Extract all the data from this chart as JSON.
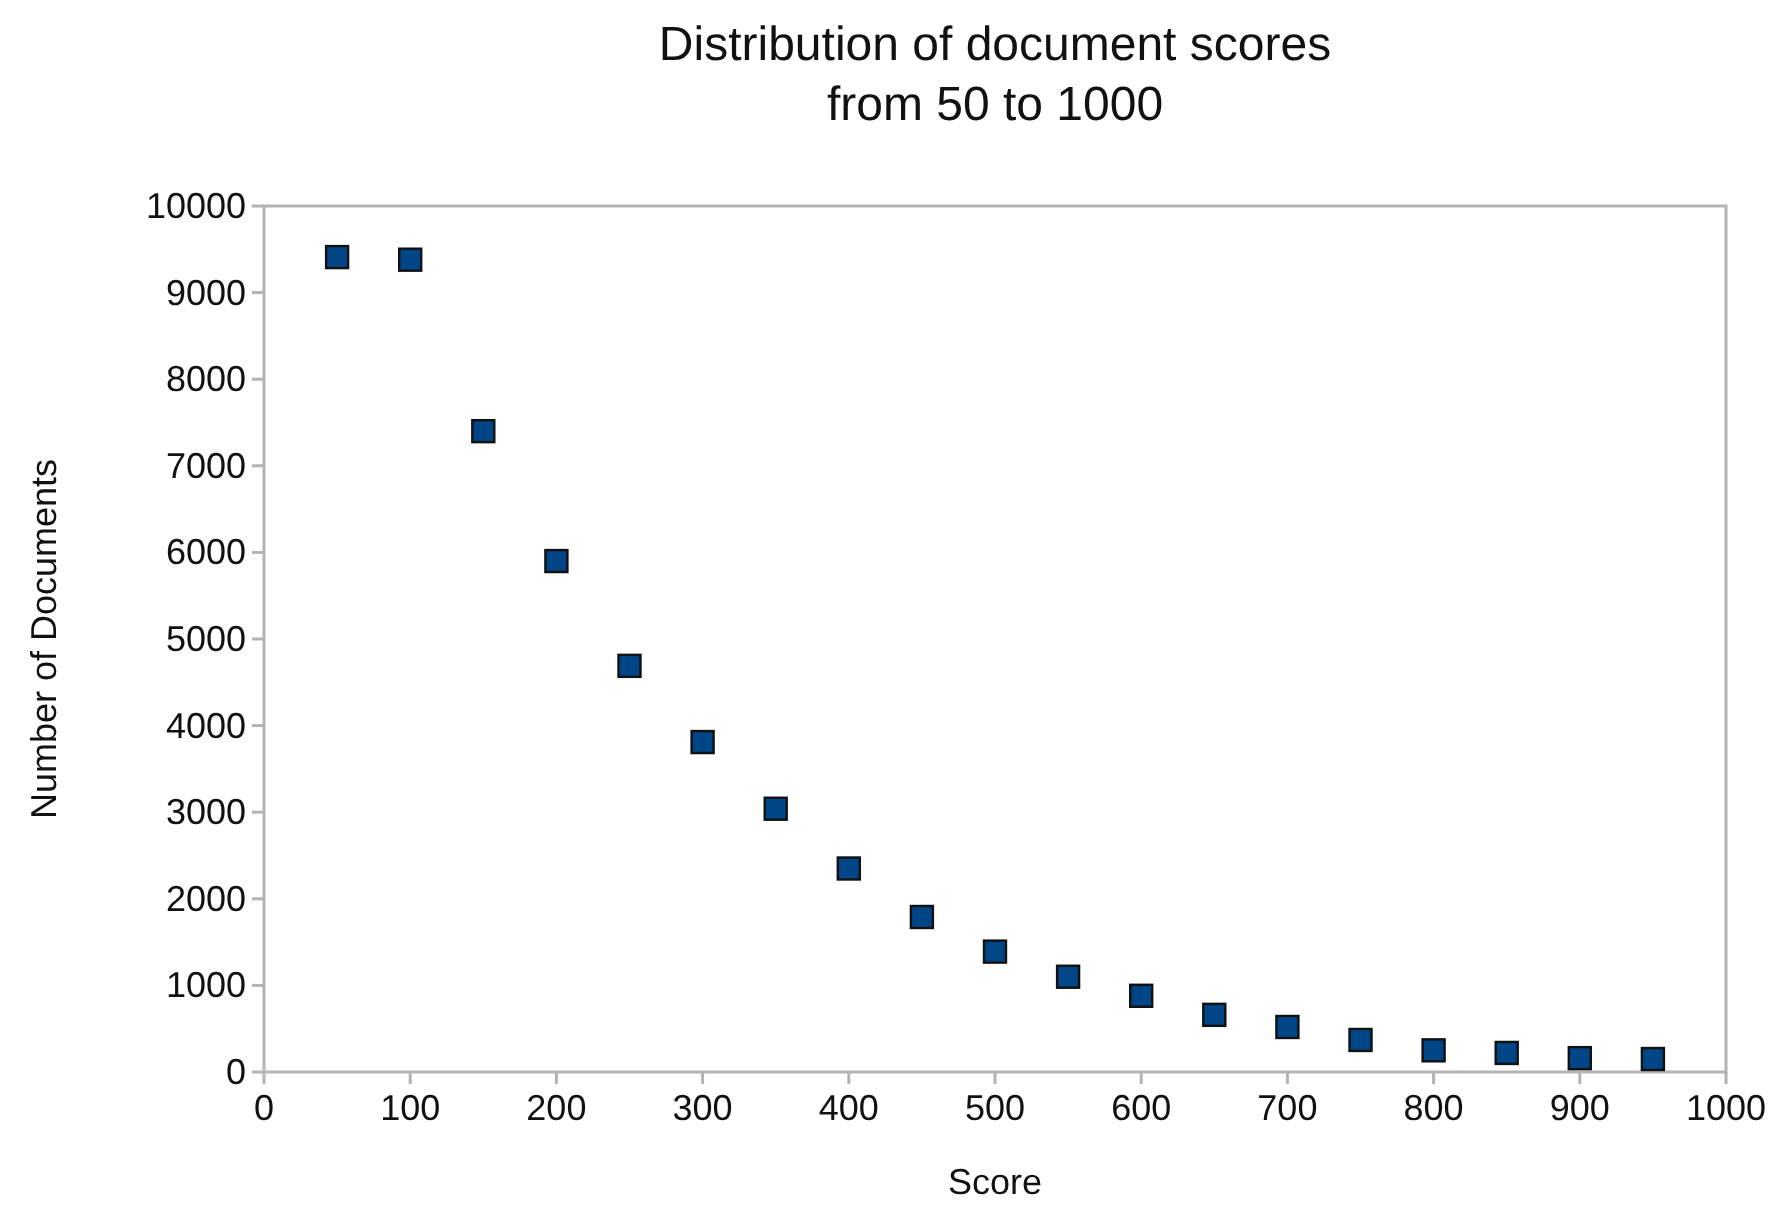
{
  "chart_data": {
    "type": "scatter",
    "title": "Distribution of document scores\nfrom 50 to 1000",
    "xlabel": "Score",
    "ylabel": "Number of Documents",
    "x": [
      50,
      100,
      150,
      200,
      250,
      300,
      350,
      400,
      450,
      500,
      550,
      600,
      650,
      700,
      750,
      800,
      850,
      900,
      950
    ],
    "series": [
      {
        "color": "#004586",
        "values": [
          9410,
          9380,
          7400,
          5900,
          4690,
          3810,
          3040,
          2350,
          1790,
          1390,
          1100,
          880,
          660,
          520,
          370,
          250,
          220,
          160,
          150
        ]
      }
    ],
    "xlim": [
      0,
      1000
    ],
    "xticks": [
      0,
      100,
      200,
      300,
      400,
      500,
      600,
      700,
      800,
      900,
      1000
    ],
    "ylim": [
      0,
      10000
    ],
    "yticks": [
      0,
      1000,
      2000,
      3000,
      4000,
      5000,
      6000,
      7000,
      8000,
      9000,
      10000
    ],
    "grid": false,
    "marker": "square"
  }
}
